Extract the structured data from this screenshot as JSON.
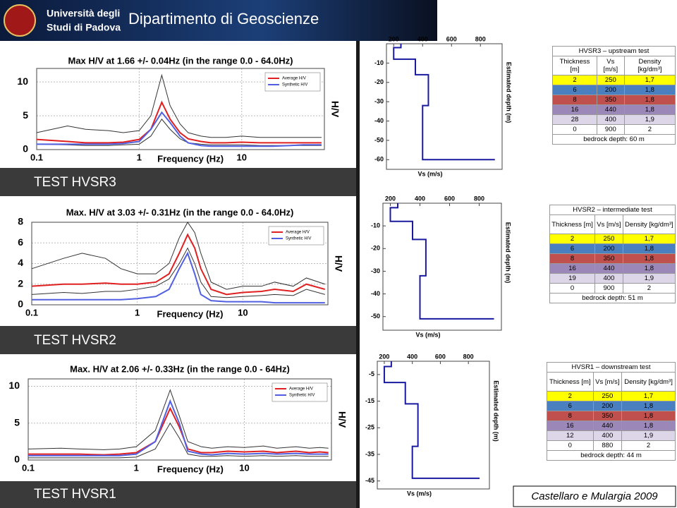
{
  "header": {
    "university": [
      "Università degli",
      "Studi di Padova"
    ],
    "department": "Dipartimento di Geoscienze"
  },
  "panel_labels": [
    "TEST HVSR3",
    "TEST HVSR2",
    "TEST HVSR1"
  ],
  "citation": "Castellaro e Mulargia 2009",
  "chart_data": [
    {
      "type": "hv",
      "title": "Max H/V at 1.66 +/- 0.04Hz (in the range 0.0 - 64.0Hz)",
      "x_label": "Frequency (Hz)",
      "y_label": "H/V",
      "log_x": true,
      "grid": true,
      "legend": "upper right",
      "x": [
        0.1,
        0.2,
        0.3,
        0.5,
        0.7,
        1,
        1.3,
        1.66,
        2,
        2.5,
        3,
        4,
        5,
        7,
        10,
        15,
        20,
        30,
        40,
        60
      ],
      "xlim": [
        0.1,
        64
      ],
      "xticks": [
        0.1,
        1,
        10
      ],
      "ylim": [
        0,
        12
      ],
      "yticks": [
        0,
        5,
        10
      ],
      "series": [
        {
          "color": "#333333",
          "values": [
            2.5,
            3.5,
            3,
            2.8,
            2.5,
            2.8,
            5,
            11,
            6.5,
            3.8,
            2.5,
            2,
            1.8,
            1.8,
            2,
            1.8,
            1.8,
            1.8,
            1.8,
            1.8
          ]
        },
        {
          "color": "#333333",
          "values": [
            0.8,
            0.7,
            0.6,
            0.6,
            0.7,
            0.8,
            2,
            4.5,
            3,
            1.6,
            1,
            0.8,
            0.7,
            0.7,
            0.7,
            0.6,
            0.6,
            0.6,
            0.6,
            0.6
          ]
        },
        {
          "name": "Average H/V",
          "color": "#e02020",
          "values": [
            1.5,
            1.2,
            1,
            1,
            1.1,
            1.5,
            3,
            7,
            4.5,
            2.5,
            1.6,
            1.2,
            1,
            1,
            1.1,
            1,
            1,
            1,
            1,
            1
          ]
        },
        {
          "name": "Synthetic H/V",
          "color": "#5060e0",
          "values": [
            0.8,
            0.8,
            0.8,
            0.8,
            0.9,
            1.2,
            3,
            5.5,
            4,
            2,
            1,
            0.6,
            0.5,
            0.5,
            0.5,
            0.5,
            0.5,
            0.6,
            0.7,
            0.7
          ]
        }
      ]
    },
    {
      "type": "vs",
      "x_label": "Vs (m/s)",
      "y_label": "Estimated depth (m)",
      "xlim": [
        150,
        950
      ],
      "xticks": [
        200,
        400,
        600,
        800
      ],
      "ylim": [
        -65,
        0
      ],
      "yticks": [
        -10,
        -20,
        -30,
        -40,
        -50,
        -60
      ],
      "series": [
        {
          "color": "#1a1aa0",
          "x": [
            250,
            250,
            200,
            200,
            350,
            350,
            440,
            440,
            400,
            400,
            900
          ],
          "values": [
            0,
            -2,
            -2,
            -8,
            -8,
            -16,
            -16,
            -32,
            -32,
            -60,
            -60
          ]
        }
      ]
    },
    {
      "type": "hv",
      "title": "Max. H/V at 3.03 +/- 0.31Hz (in the range 0.0 - 64.0Hz)",
      "x_label": "Frequency (Hz)",
      "y_label": "H/V",
      "log_x": true,
      "grid": true,
      "legend": "upper right",
      "x": [
        0.1,
        0.2,
        0.3,
        0.5,
        0.7,
        1,
        1.5,
        2,
        2.5,
        3,
        3.5,
        4,
        5,
        7,
        10,
        15,
        20,
        30,
        40,
        60
      ],
      "xlim": [
        0.1,
        64
      ],
      "xticks": [
        0.1,
        1,
        10
      ],
      "ylim": [
        0,
        8
      ],
      "yticks": [
        0,
        2,
        4,
        6,
        8
      ],
      "series": [
        {
          "color": "#333333",
          "values": [
            3.5,
            4.5,
            5,
            4.5,
            3.5,
            3,
            3,
            4,
            6.5,
            8,
            7,
            5,
            2.2,
            1.5,
            1.8,
            1.8,
            2.2,
            1.8,
            2.6,
            2
          ]
        },
        {
          "color": "#333333",
          "values": [
            1,
            1.2,
            1.1,
            1.3,
            1.3,
            1.5,
            1.8,
            2.5,
            4,
            5.5,
            4,
            2.2,
            0.8,
            0.7,
            0.8,
            0.9,
            1,
            0.9,
            1.5,
            1
          ]
        },
        {
          "name": "Average H/V",
          "color": "#e02020",
          "values": [
            1.8,
            2,
            2,
            2.1,
            2,
            2,
            2.2,
            3,
            5,
            6.8,
            5.5,
            3.5,
            1.5,
            1,
            1.2,
            1.3,
            1.5,
            1.3,
            2,
            1.5
          ]
        },
        {
          "name": "Synthetic H/V",
          "color": "#5060e0",
          "values": [
            0.5,
            0.5,
            0.5,
            0.5,
            0.5,
            0.6,
            0.8,
            1.5,
            3.5,
            5,
            3,
            1,
            0.4,
            0.3,
            0.3,
            0.3,
            0.2,
            0.2,
            0.2,
            0.2
          ]
        }
      ]
    },
    {
      "type": "vs",
      "x_label": "Vs (m/s)",
      "y_label": "Estimated depth (m)",
      "xlim": [
        150,
        950
      ],
      "xticks": [
        200,
        400,
        600,
        800
      ],
      "ylim": [
        -56,
        0
      ],
      "yticks": [
        -10,
        -20,
        -30,
        -40,
        -50
      ],
      "series": [
        {
          "color": "#1a1aa0",
          "x": [
            250,
            250,
            200,
            200,
            350,
            350,
            440,
            440,
            400,
            400,
            900
          ],
          "values": [
            0,
            -2,
            -2,
            -8,
            -8,
            -16,
            -16,
            -32,
            -32,
            -51,
            -51
          ]
        }
      ]
    },
    {
      "type": "hv",
      "title": "Max. H/V at 2.06 +/- 0.33Hz (in the range 0.0 - 64Hz)",
      "x_label": "Frequency (Hz)",
      "y_label": "H/V",
      "log_x": true,
      "grid": true,
      "legend": "upper right",
      "x": [
        0.1,
        0.2,
        0.3,
        0.5,
        0.7,
        1,
        1.5,
        2.06,
        2.5,
        3,
        4,
        5,
        7,
        10,
        15,
        20,
        30,
        40,
        50,
        60
      ],
      "xlim": [
        0.1,
        64
      ],
      "xticks": [
        0.1,
        1,
        10
      ],
      "ylim": [
        0,
        11
      ],
      "yticks": [
        0,
        5,
        10
      ],
      "series": [
        {
          "color": "#333333",
          "values": [
            1.5,
            1.6,
            1.5,
            1.4,
            1.5,
            1.8,
            4,
            9.5,
            6,
            2.5,
            1.8,
            1.6,
            1.8,
            1.7,
            1.9,
            1.6,
            1.8,
            1.6,
            1.7,
            1.6
          ]
        },
        {
          "color": "#333333",
          "values": [
            0.3,
            0.3,
            0.3,
            0.3,
            0.3,
            0.4,
            1.5,
            5,
            3,
            0.8,
            0.5,
            0.5,
            0.6,
            0.5,
            0.6,
            0.5,
            0.6,
            0.5,
            0.5,
            0.5
          ]
        },
        {
          "name": "Average H/V",
          "color": "#e02020",
          "values": [
            0.8,
            0.8,
            0.8,
            0.7,
            0.8,
            1,
            2.5,
            7,
            4.5,
            1.5,
            1,
            1,
            1.2,
            1.1,
            1.2,
            1,
            1.2,
            1,
            1.1,
            1
          ]
        },
        {
          "name": "Synthetic H/V",
          "color": "#5060e0",
          "values": [
            0.6,
            0.6,
            0.6,
            0.6,
            0.6,
            0.8,
            2.5,
            8,
            5,
            1.2,
            0.8,
            0.7,
            0.9,
            0.8,
            0.9,
            0.8,
            0.9,
            0.8,
            0.8,
            0.8
          ]
        }
      ]
    },
    {
      "type": "vs",
      "x_label": "Vs (m/s)",
      "y_label": "Estimated depth (m)",
      "xlim": [
        150,
        950
      ],
      "xticks": [
        200,
        400,
        600,
        800
      ],
      "ylim": [
        -48,
        0
      ],
      "yticks": [
        -5,
        -15,
        -25,
        -35,
        -45
      ],
      "series": [
        {
          "color": "#1a1aa0",
          "x": [
            250,
            250,
            200,
            200,
            350,
            350,
            440,
            440,
            400,
            400,
            880
          ],
          "values": [
            0,
            -2,
            -2,
            -8,
            -8,
            -16,
            -16,
            -32,
            -32,
            -44,
            -44
          ]
        }
      ]
    }
  ],
  "tables": [
    {
      "title": "HVSR3 – upstream test",
      "columns": [
        "Thickness [m]",
        "Vs [m/s]",
        "Density [kg/dm³]"
      ],
      "rows": [
        [
          "2",
          "250",
          "1,7"
        ],
        [
          "6",
          "200",
          "1,8"
        ],
        [
          "8",
          "350",
          "1,8"
        ],
        [
          "16",
          "440",
          "1,8"
        ],
        [
          "28",
          "400",
          "1,9"
        ],
        [
          "0",
          "900",
          "2"
        ]
      ],
      "row_colors": [
        "#ffff00",
        "#4a7fc0",
        "#c0504d",
        "#9c88b8",
        "#ddd5e8",
        "#ffffff"
      ],
      "footer": "bedrock depth: 60 m"
    },
    {
      "title": "HVSR2 – intermediate test",
      "columns": [
        "Thickness [m]",
        "Vs [m/s]",
        "Density [kg/dm³]"
      ],
      "rows": [
        [
          "2",
          "250",
          "1,7"
        ],
        [
          "6",
          "200",
          "1,8"
        ],
        [
          "8",
          "350",
          "1,8"
        ],
        [
          "16",
          "440",
          "1,8"
        ],
        [
          "19",
          "400",
          "1,9"
        ],
        [
          "0",
          "900",
          "2"
        ]
      ],
      "row_colors": [
        "#ffff00",
        "#4a7fc0",
        "#c0504d",
        "#9c88b8",
        "#ddd5e8",
        "#ffffff"
      ],
      "footer": "bedrock depth: 51 m"
    },
    {
      "title": "HVSR1 – downstream test",
      "columns": [
        "Thickness [m]",
        "Vs [m/s]",
        "Density [kg/dm³]"
      ],
      "rows": [
        [
          "2",
          "250",
          "1,7"
        ],
        [
          "6",
          "200",
          "1,8"
        ],
        [
          "8",
          "350",
          "1,8"
        ],
        [
          "16",
          "440",
          "1,8"
        ],
        [
          "12",
          "400",
          "1,9"
        ],
        [
          "0",
          "880",
          "2"
        ]
      ],
      "row_colors": [
        "#ffff00",
        "#4a7fc0",
        "#c0504d",
        "#9c88b8",
        "#ddd5e8",
        "#ffffff"
      ],
      "footer": "bedrock depth: 44 m"
    }
  ]
}
